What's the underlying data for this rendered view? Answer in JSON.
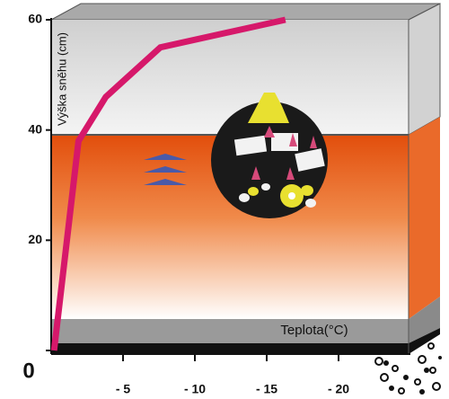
{
  "chart_data": {
    "type": "line",
    "y_label": "Výška sněhu (cm)",
    "x_label": "Teplota(°C)",
    "x": [
      -0.2,
      -1.9,
      -3.8,
      -7.6,
      -16.3
    ],
    "series": [
      {
        "color": "#d6186a",
        "values": [
          0,
          38,
          46,
          55,
          60
        ]
      }
    ],
    "xlim": [
      0,
      -25
    ],
    "ylim": [
      0,
      60
    ],
    "xticks": [
      {
        "value": -5,
        "label": "- 5"
      },
      {
        "value": -10,
        "label": "- 10"
      },
      {
        "value": -15,
        "label": "- 15"
      },
      {
        "value": -20,
        "label": "- 20"
      }
    ],
    "yticks": [
      0,
      20,
      40,
      60
    ]
  }
}
